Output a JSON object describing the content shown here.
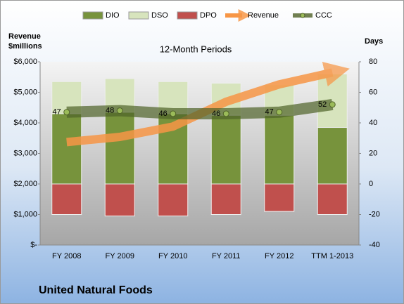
{
  "chart_data": {
    "type": "stacked-bar-line",
    "title": "12-Month Periods",
    "y_label_lines": [
      "Revenue",
      "$millions"
    ],
    "y2_label": "Days",
    "footer": "United Natural Foods",
    "categories": [
      "FY 2008",
      "FY 2009",
      "FY 2010",
      "FY 2011",
      "FY 2012",
      "TTM 1-2013"
    ],
    "series": [
      {
        "name": "DIO",
        "color": "#77933c",
        "axis": "y2",
        "kind": "bar-up",
        "values": [
          46,
          47,
          46,
          45,
          45,
          37
        ]
      },
      {
        "name": "DSO",
        "color": "#d7e4bd",
        "axis": "y2",
        "kind": "bar-up",
        "values": [
          21,
          22,
          21,
          21,
          20,
          35
        ]
      },
      {
        "name": "DPO",
        "color": "#c0504d",
        "axis": "y2",
        "kind": "bar-down",
        "values": [
          20,
          21,
          21,
          20,
          18,
          20
        ]
      },
      {
        "name": "Revenue",
        "color": "#f79646",
        "axis": "y",
        "kind": "arrow",
        "values": [
          3370,
          3540,
          3880,
          4690,
          5260,
          5650
        ]
      },
      {
        "name": "CCC",
        "color": "#4f6228",
        "axis": "y2",
        "kind": "line",
        "values": [
          47,
          48,
          46,
          46,
          47,
          52
        ]
      }
    ],
    "ylim": [
      0,
      6000
    ],
    "yticks": [
      {
        "value": 0,
        "label": "$-"
      },
      {
        "value": 1000,
        "label": "$1,000"
      },
      {
        "value": 2000,
        "label": "$2,000"
      },
      {
        "value": 3000,
        "label": "$3,000"
      },
      {
        "value": 4000,
        "label": "$4,000"
      },
      {
        "value": 5000,
        "label": "$5,000"
      },
      {
        "value": 6000,
        "label": "$6,000"
      }
    ],
    "y2lim": [
      -40,
      80
    ],
    "y2ticks": [
      -40,
      -20,
      0,
      20,
      40,
      60,
      80
    ]
  }
}
